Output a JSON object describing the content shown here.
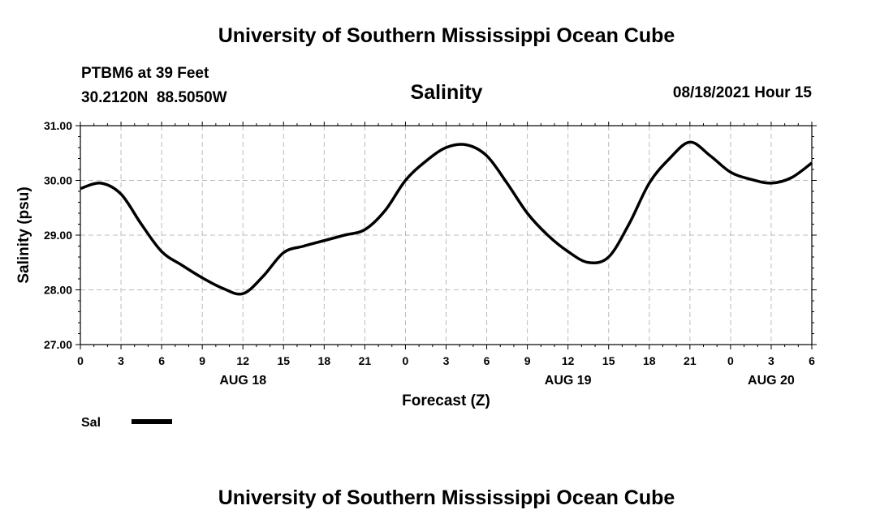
{
  "header": {
    "org_title": "University of Southern Mississippi Ocean Cube",
    "station_name": "PTBM6 at 39 Feet",
    "station_coords": "30.2120N  88.5050W",
    "chart_title": "Salinity",
    "timestamp": "08/18/2021 Hour 15"
  },
  "footer": {
    "org_title": "University of Southern Mississippi Ocean Cube"
  },
  "chart_data": {
    "type": "line",
    "title": "Salinity",
    "xlabel": "Forecast (Z)",
    "ylabel": "Salinity (psu)",
    "ylim": [
      27.0,
      31.0
    ],
    "xlim": [
      0,
      54
    ],
    "y_ticks": [
      "27.00",
      "28.00",
      "29.00",
      "30.00",
      "31.00"
    ],
    "y_tick_values": [
      27,
      28,
      29,
      30,
      31
    ],
    "x_tick_labels": [
      "0",
      "3",
      "6",
      "9",
      "12",
      "15",
      "18",
      "21",
      "0",
      "3",
      "6",
      "9",
      "12",
      "15",
      "18",
      "21",
      "0",
      "3",
      "6"
    ],
    "date_labels": [
      {
        "label": "AUG 18",
        "hour": 12
      },
      {
        "label": "AUG 19",
        "hour": 36
      },
      {
        "label": "AUG 20",
        "hour": 51
      }
    ],
    "grid": true,
    "series": [
      {
        "name": "Sal",
        "color": "#000000",
        "x": [
          0,
          1.5,
          3,
          4.5,
          6,
          7.5,
          9,
          10.5,
          12,
          13.5,
          15,
          16.5,
          18,
          19.5,
          21,
          22.5,
          24,
          25.5,
          27,
          28.5,
          30,
          31.5,
          33,
          34.5,
          36,
          37.5,
          39,
          40.5,
          42,
          43.5,
          45,
          46.5,
          48,
          49.5,
          51,
          52.5,
          54
        ],
        "values": [
          29.85,
          29.95,
          29.75,
          29.2,
          28.7,
          28.45,
          28.22,
          28.03,
          27.93,
          28.25,
          28.68,
          28.8,
          28.9,
          29.0,
          29.1,
          29.45,
          30.0,
          30.35,
          30.6,
          30.65,
          30.45,
          29.95,
          29.4,
          29.0,
          28.7,
          28.5,
          28.6,
          29.2,
          29.95,
          30.4,
          30.7,
          30.45,
          30.15,
          30.02,
          29.95,
          30.05,
          30.32
        ]
      }
    ],
    "legend": [
      {
        "label": "Sal",
        "placement": "bottom-left"
      }
    ]
  }
}
